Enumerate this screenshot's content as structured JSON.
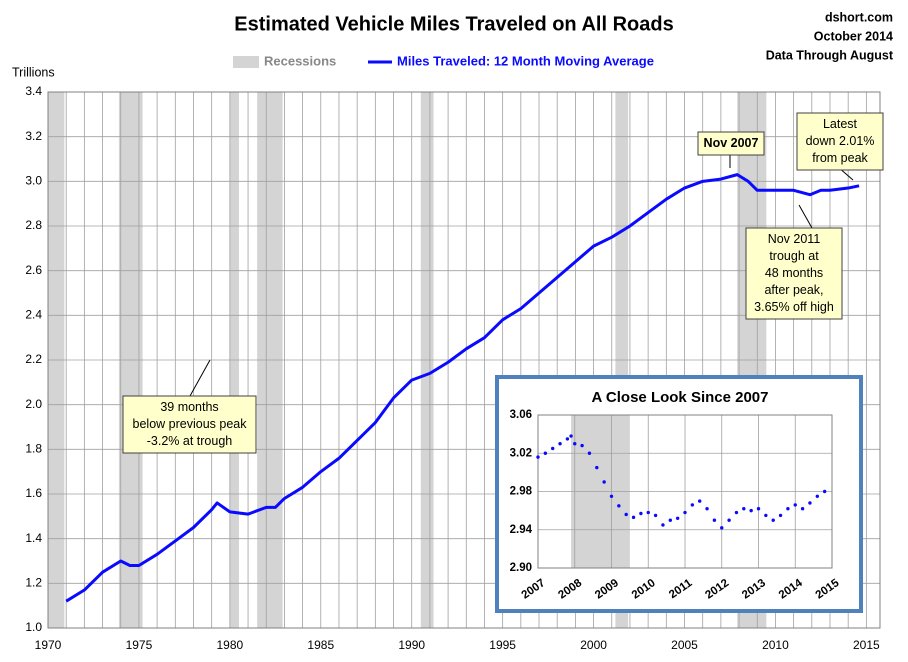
{
  "chart_data": [
    {
      "type": "line",
      "title": "Estimated Vehicle Miles Traveled on All Roads",
      "source": [
        "dshort.com",
        "October 2014",
        "Data Through August"
      ],
      "y_label": "Trillions",
      "xlim": [
        1970,
        2015.75
      ],
      "xticks": [
        1970,
        1975,
        1980,
        1985,
        1990,
        1995,
        2000,
        2005,
        2010,
        2015
      ],
      "xminorticks": [
        1971,
        1972,
        1973,
        1974,
        1976,
        1977,
        1978,
        1979,
        1981,
        1982,
        1983,
        1984,
        1986,
        1987,
        1988,
        1989,
        1991,
        1992,
        1993,
        1994,
        1996,
        1997,
        1998,
        1999,
        2001,
        2002,
        2003,
        2004,
        2006,
        2007,
        2008,
        2009,
        2011,
        2012,
        2013,
        2014
      ],
      "ylim": [
        1.0,
        3.4
      ],
      "yticks": [
        {
          "value": 1.0,
          "label": "1.0"
        },
        1.2,
        1.4,
        1.6,
        1.8,
        {
          "value": 2.0,
          "label": "2.0"
        },
        2.2,
        2.4,
        2.6,
        2.8,
        {
          "value": 3.0,
          "label": "3.0"
        },
        3.2,
        3.4
      ],
      "grid": true,
      "recessions": {
        "name": "Recessions",
        "color": "#d4d4d4",
        "spans": [
          [
            1970.0,
            1970.9
          ],
          [
            1973.9,
            1975.2
          ],
          [
            1980.0,
            1980.5
          ],
          [
            1981.5,
            1982.9
          ],
          [
            1990.5,
            1991.2
          ],
          [
            2001.2,
            2001.9
          ],
          [
            2007.9,
            2009.5
          ]
        ]
      },
      "series": [
        {
          "name": "Miles Traveled: 12 Month Moving Average",
          "color": "#0a0aff",
          "x": [
            1971.0,
            1972.0,
            1973.0,
            1974.0,
            1974.5,
            1975.0,
            1976.0,
            1977.0,
            1978.0,
            1979.0,
            1979.3,
            1980.0,
            1981.0,
            1982.0,
            1982.5,
            1983.0,
            1984.0,
            1985.0,
            1986.0,
            1987.0,
            1988.0,
            1989.0,
            1990.0,
            1991.0,
            1992.0,
            1993.0,
            1994.0,
            1995.0,
            1996.0,
            1997.0,
            1998.0,
            1999.0,
            2000.0,
            2001.0,
            2002.0,
            2003.0,
            2004.0,
            2005.0,
            2006.0,
            2007.0,
            2007.9,
            2008.5,
            2009.0,
            2010.0,
            2011.0,
            2011.9,
            2012.5,
            2013.0,
            2014.0,
            2014.6
          ],
          "values": [
            1.12,
            1.17,
            1.25,
            1.3,
            1.28,
            1.28,
            1.33,
            1.39,
            1.45,
            1.53,
            1.56,
            1.52,
            1.51,
            1.54,
            1.54,
            1.58,
            1.63,
            1.7,
            1.76,
            1.84,
            1.92,
            2.03,
            2.11,
            2.14,
            2.19,
            2.25,
            2.3,
            2.38,
            2.43,
            2.5,
            2.57,
            2.64,
            2.71,
            2.75,
            2.8,
            2.86,
            2.92,
            2.97,
            3.0,
            3.01,
            3.03,
            3.0,
            2.96,
            2.96,
            2.96,
            2.94,
            2.96,
            2.96,
            2.97,
            2.98
          ]
        }
      ],
      "annotations": [
        {
          "lines": [
            "Nov 2007"
          ]
        },
        {
          "lines": [
            "Latest",
            "down 2.01%",
            "from peak"
          ]
        },
        {
          "lines": [
            "Nov 2011",
            "trough at",
            "48 months",
            "after peak,",
            "3.65% off high"
          ]
        },
        {
          "lines": [
            "39 months",
            "below previous peak",
            "-3.2% at trough"
          ]
        }
      ]
    },
    {
      "type": "scatter",
      "title": "A Close Look Since 2007",
      "xlim": [
        2007,
        2015
      ],
      "xticks": [
        2007,
        2008,
        2009,
        2010,
        2011,
        2012,
        2013,
        2014,
        2015
      ],
      "ylim": [
        2.9,
        3.06
      ],
      "yticks": [
        {
          "value": 2.9,
          "label": "2.90"
        },
        2.94,
        2.98,
        3.02,
        3.06
      ],
      "grid": true,
      "recessions": {
        "color": "#d4d4d4",
        "spans": [
          [
            2007.9,
            2009.5
          ]
        ]
      },
      "series": [
        {
          "color": "#0a0aff",
          "x": [
            2007.0,
            2007.2,
            2007.4,
            2007.6,
            2007.8,
            2007.9,
            2008.0,
            2008.2,
            2008.4,
            2008.6,
            2008.8,
            2009.0,
            2009.2,
            2009.4,
            2009.6,
            2009.8,
            2010.0,
            2010.2,
            2010.4,
            2010.6,
            2010.8,
            2011.0,
            2011.2,
            2011.4,
            2011.6,
            2011.8,
            2012.0,
            2012.2,
            2012.4,
            2012.6,
            2012.8,
            2013.0,
            2013.2,
            2013.4,
            2013.6,
            2013.8,
            2014.0,
            2014.2,
            2014.4,
            2014.6,
            2014.8
          ],
          "values": [
            3.016,
            3.02,
            3.025,
            3.03,
            3.035,
            3.038,
            3.03,
            3.028,
            3.02,
            3.005,
            2.99,
            2.975,
            2.965,
            2.956,
            2.953,
            2.957,
            2.958,
            2.955,
            2.945,
            2.95,
            2.952,
            2.958,
            2.966,
            2.97,
            2.962,
            2.95,
            2.942,
            2.95,
            2.958,
            2.962,
            2.96,
            2.962,
            2.955,
            2.95,
            2.955,
            2.962,
            2.966,
            2.962,
            2.968,
            2.975,
            2.98
          ]
        }
      ]
    }
  ]
}
